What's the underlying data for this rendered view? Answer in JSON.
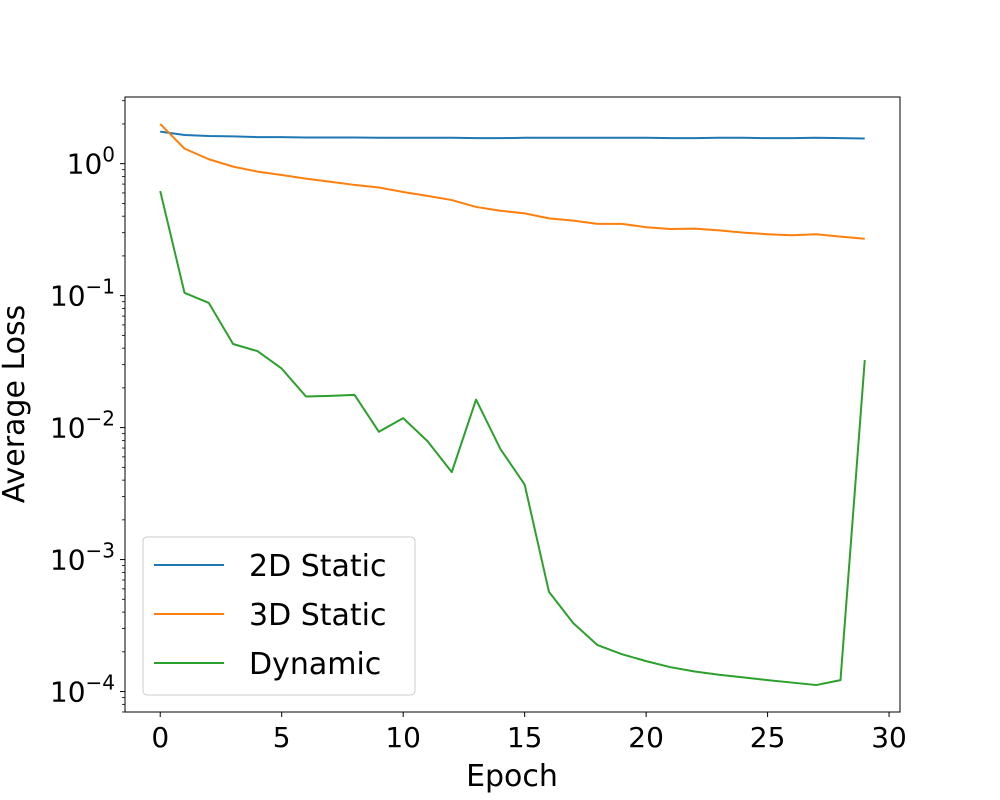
{
  "chart_data": {
    "type": "line",
    "title": "",
    "xlabel": "Epoch",
    "ylabel": "Average Loss",
    "yscale": "log",
    "xlim": [
      -1.45,
      30.45
    ],
    "ylim": [
      7e-05,
      3.2
    ],
    "x_ticks": [
      0,
      5,
      10,
      15,
      20,
      25,
      30
    ],
    "y_ticks": [
      {
        "value": 1,
        "base": "10",
        "exp": "0"
      },
      {
        "value": 0.1,
        "base": "10",
        "exp": "−1"
      },
      {
        "value": 0.01,
        "base": "10",
        "exp": "−2"
      },
      {
        "value": 0.001,
        "base": "10",
        "exp": "−3"
      },
      {
        "value": 0.0001,
        "base": "10",
        "exp": "−4"
      }
    ],
    "grid": false,
    "legend_position": "lower-left",
    "x": [
      0,
      1,
      2,
      3,
      4,
      5,
      6,
      7,
      8,
      9,
      10,
      11,
      12,
      13,
      14,
      15,
      16,
      17,
      18,
      19,
      20,
      21,
      22,
      23,
      24,
      25,
      26,
      27,
      28,
      29
    ],
    "series": [
      {
        "name": "2D Static",
        "color": "#1f77b4",
        "values": [
          1.75,
          1.65,
          1.62,
          1.61,
          1.59,
          1.59,
          1.58,
          1.58,
          1.58,
          1.57,
          1.57,
          1.57,
          1.57,
          1.56,
          1.56,
          1.57,
          1.57,
          1.57,
          1.57,
          1.57,
          1.57,
          1.56,
          1.56,
          1.57,
          1.57,
          1.56,
          1.56,
          1.57,
          1.56,
          1.55
        ]
      },
      {
        "name": "3D Static",
        "color": "#ff7f0e",
        "values": [
          2.0,
          1.3,
          1.08,
          0.95,
          0.87,
          0.82,
          0.77,
          0.73,
          0.69,
          0.66,
          0.61,
          0.57,
          0.53,
          0.47,
          0.44,
          0.42,
          0.385,
          0.37,
          0.35,
          0.35,
          0.33,
          0.32,
          0.322,
          0.312,
          0.3,
          0.292,
          0.287,
          0.292,
          0.28,
          0.27
        ]
      },
      {
        "name": "Dynamic",
        "color": "#2ca02c",
        "values": [
          0.62,
          0.105,
          0.088,
          0.043,
          0.038,
          0.028,
          0.0172,
          0.0174,
          0.0177,
          0.0093,
          0.0118,
          0.0079,
          0.0046,
          0.0163,
          0.0069,
          0.0037,
          0.00057,
          0.00033,
          0.000225,
          0.000192,
          0.00017,
          0.000153,
          0.000142,
          0.000134,
          0.000128,
          0.000122,
          0.000117,
          0.000112,
          0.000122,
          0.0325
        ]
      }
    ]
  }
}
